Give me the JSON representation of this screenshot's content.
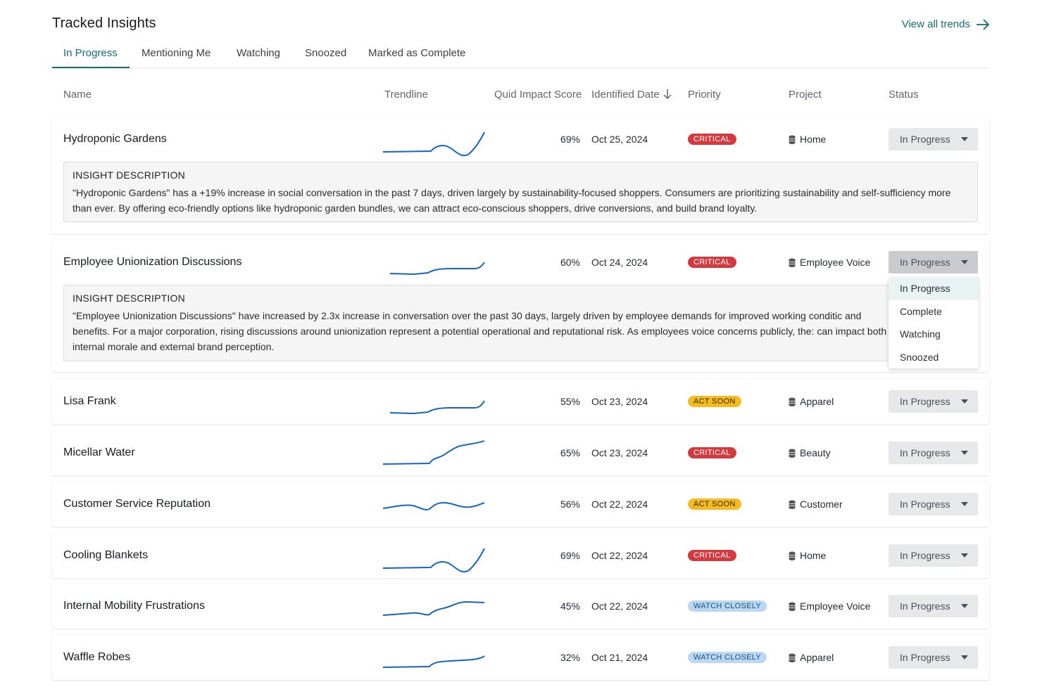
{
  "header": {
    "title": "Tracked Insights",
    "view_all": "View all trends"
  },
  "tabs": [
    {
      "label": "In Progress",
      "active": true
    },
    {
      "label": "Mentioning Me"
    },
    {
      "label": "Watching"
    },
    {
      "label": "Snoozed"
    },
    {
      "label": "Marked as Complete"
    }
  ],
  "columns": {
    "name": "Name",
    "trendline": "Trendline",
    "score": "Quid Impact Score",
    "date": "Identified Date",
    "priority": "Priority",
    "project": "Project",
    "status": "Status"
  },
  "colors": {
    "accent": "#0f6e73",
    "critical": "#d33a3f",
    "act_soon": "#f6bb1f",
    "watch_closely": "#b9d8f3",
    "sparkline": "#1565c0"
  },
  "insights": [
    {
      "name": "Hydroponic Gardens",
      "score": "69%",
      "date": "Oct 25, 2024",
      "priority": "CRITICAL",
      "project": "Home",
      "status": "In Progress",
      "description_title": "INSIGHT DESCRIPTION",
      "description": "\"Hydroponic Gardens\" has a +19% increase in social conversation in the past 7 days, driven largely by sustainability-focused shoppers. Consumers are prioritizing sustainability and self-sufficiency more than ever. By offering eco-friendly options like hydroponic garden bundles, we can attract eco-conscious shoppers, drive conversions, and build brand loyalty."
    },
    {
      "name": "Employee Unionization Discussions",
      "score": "60%",
      "date": "Oct 24, 2024",
      "priority": "CRITICAL",
      "project": "Employee Voice",
      "status": "In Progress",
      "description_title": "INSIGHT DESCRIPTION",
      "description": "\"Employee Unionization Discussions\" have increased by 2.3x increase in conversation over the past 30 days, largely driven by employee demands for improved working conditic and benefits. For a major corporation, rising discussions around unionization represent a potential operational and reputational risk. As employees voice concerns publicly, the: can impact both internal morale and external brand perception."
    },
    {
      "name": "Lisa Frank",
      "score": "55%",
      "date": "Oct 23, 2024",
      "priority": "ACT SOON",
      "project": "Apparel",
      "status": "In Progress"
    },
    {
      "name": "Micellar Water",
      "score": "65%",
      "date": "Oct 23, 2024",
      "priority": "CRITICAL",
      "project": "Beauty",
      "status": "In Progress"
    },
    {
      "name": "Customer Service Reputation",
      "score": "56%",
      "date": "Oct 22, 2024",
      "priority": "ACT SOON",
      "project": "Customer",
      "status": "In Progress"
    },
    {
      "name": "Cooling Blankets",
      "score": "69%",
      "date": "Oct 22, 2024",
      "priority": "CRITICAL",
      "project": "Home",
      "status": "In Progress"
    },
    {
      "name": "Internal Mobility Frustrations",
      "score": "45%",
      "date": "Oct 22, 2024",
      "priority": "WATCH CLOSELY",
      "project": "Employee Voice",
      "status": "In Progress"
    },
    {
      "name": "Waffle Robes",
      "score": "32%",
      "date": "Oct 21, 2024",
      "priority": "WATCH CLOSELY",
      "project": "Apparel",
      "status": "In Progress"
    }
  ],
  "status_dropdown": {
    "options": [
      "In Progress",
      "Complete",
      "Watching",
      "Snoozed"
    ],
    "selected": "In Progress"
  }
}
